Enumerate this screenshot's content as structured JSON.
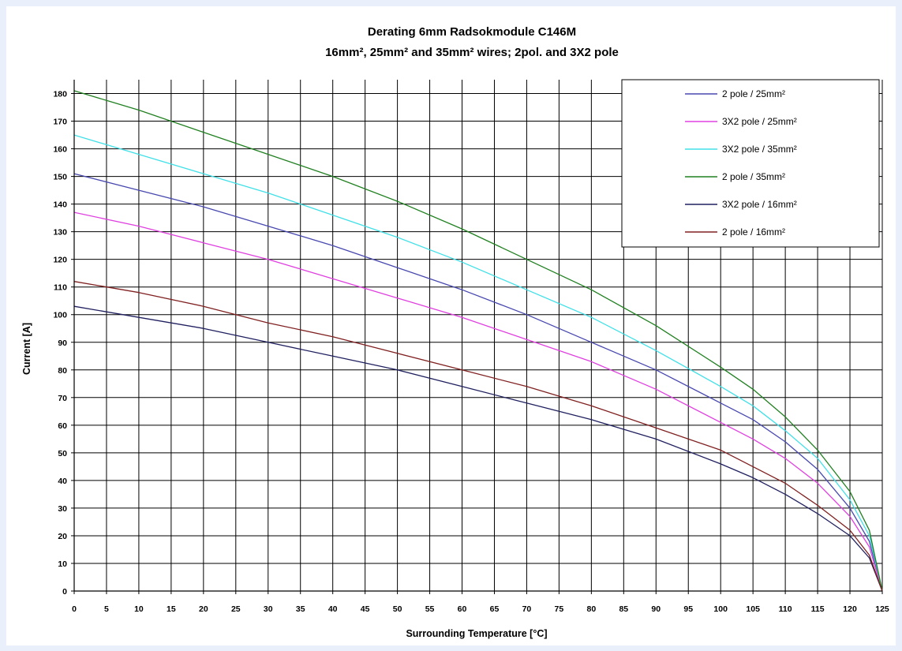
{
  "chart_data": {
    "type": "line",
    "title": "Derating 6mm Radsokmodule C146M",
    "subtitle": "16mm², 25mm² and 35mm² wires; 2pol. and 3X2 pole",
    "xlabel": "Surrounding Temperature [°C]",
    "ylabel": "Current [A]",
    "xlim": [
      0,
      125
    ],
    "ylim": [
      0,
      185
    ],
    "xticks": [
      0,
      5,
      10,
      15,
      20,
      25,
      30,
      35,
      40,
      45,
      50,
      55,
      60,
      65,
      70,
      75,
      80,
      85,
      90,
      95,
      100,
      105,
      110,
      115,
      120,
      125
    ],
    "yticks": [
      0,
      10,
      20,
      30,
      40,
      50,
      60,
      70,
      80,
      90,
      100,
      110,
      120,
      130,
      140,
      150,
      160,
      170,
      180
    ],
    "grid": true,
    "legend_position": "top-right",
    "series": [
      {
        "name": "2 pole / 25mm²",
        "color": "#4848b0",
        "x": [
          0,
          10,
          20,
          30,
          40,
          50,
          60,
          70,
          80,
          90,
          100,
          105,
          110,
          115,
          120,
          123,
          125
        ],
        "y": [
          151,
          145,
          139,
          132,
          125,
          117,
          109,
          100,
          90,
          80,
          68,
          62,
          54,
          44,
          30,
          18,
          0
        ]
      },
      {
        "name": "3X2 pole / 25mm²",
        "color": "#e040e0",
        "x": [
          0,
          10,
          20,
          30,
          40,
          50,
          60,
          70,
          80,
          90,
          100,
          105,
          110,
          115,
          120,
          123,
          125
        ],
        "y": [
          137,
          132,
          126,
          120,
          113,
          106,
          99,
          91,
          83,
          73,
          61,
          55,
          48,
          39,
          27,
          16,
          0
        ]
      },
      {
        "name": "3X2 pole / 35mm²",
        "color": "#40e0e8",
        "x": [
          0,
          10,
          20,
          30,
          40,
          50,
          60,
          70,
          80,
          90,
          100,
          105,
          110,
          115,
          120,
          123,
          125
        ],
        "y": [
          165,
          158,
          151,
          144,
          136,
          128,
          119,
          109,
          99,
          87,
          74,
          67,
          58,
          48,
          33,
          20,
          0
        ]
      },
      {
        "name": "2 pole / 35mm²",
        "color": "#208020",
        "x": [
          0,
          10,
          20,
          30,
          40,
          50,
          60,
          70,
          80,
          90,
          100,
          105,
          110,
          115,
          120,
          123,
          125
        ],
        "y": [
          181,
          174,
          166,
          158,
          150,
          141,
          131,
          120,
          109,
          96,
          81,
          73,
          63,
          51,
          36,
          22,
          0
        ]
      },
      {
        "name": "3X2 pole / 16mm²",
        "color": "#202060",
        "x": [
          0,
          10,
          20,
          30,
          40,
          50,
          60,
          70,
          80,
          90,
          100,
          105,
          110,
          115,
          120,
          123,
          125
        ],
        "y": [
          103,
          99,
          95,
          90,
          85,
          80,
          74,
          68,
          62,
          55,
          46,
          41,
          35,
          28,
          20,
          12,
          0
        ]
      },
      {
        "name": "2 pole / 16mm²",
        "color": "#802020",
        "x": [
          0,
          10,
          20,
          30,
          40,
          50,
          60,
          70,
          80,
          90,
          100,
          105,
          110,
          115,
          120,
          123,
          125
        ],
        "y": [
          112,
          108,
          103,
          97,
          92,
          86,
          80,
          74,
          67,
          59,
          51,
          45,
          39,
          31,
          22,
          13,
          0
        ]
      }
    ]
  }
}
